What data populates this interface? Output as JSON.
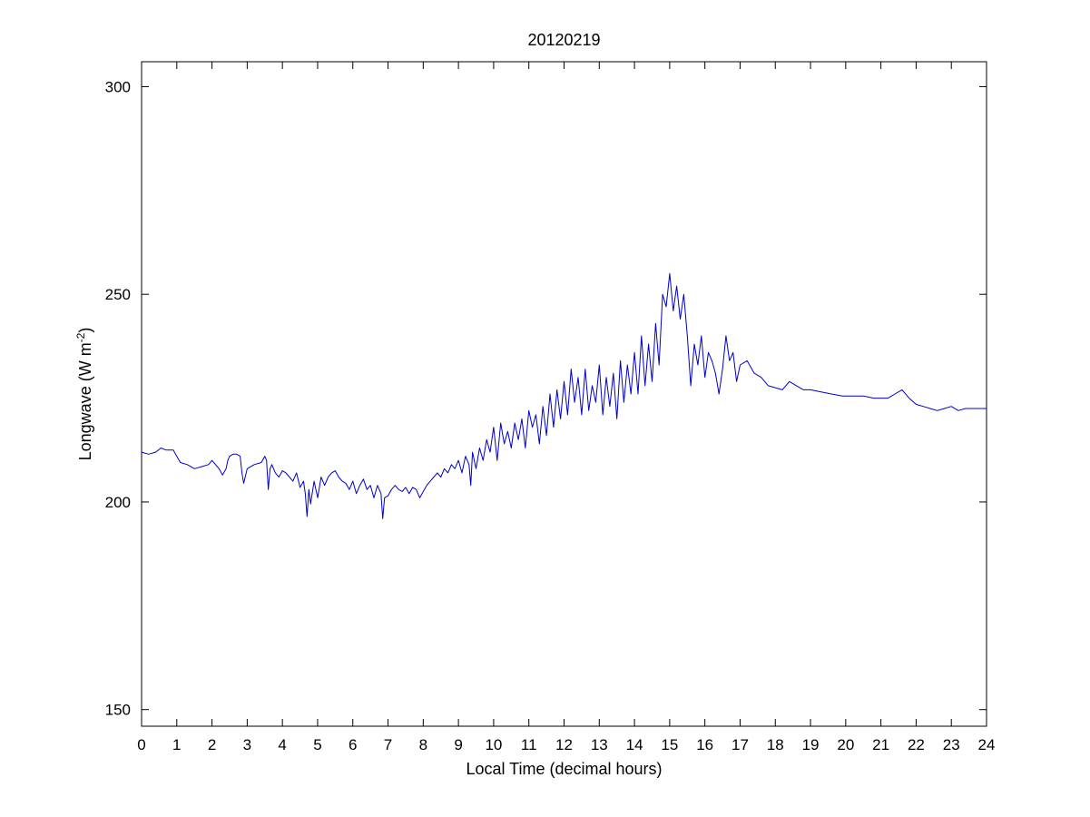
{
  "chart_data": {
    "type": "line",
    "title": "20120219",
    "xlabel": "Local Time (decimal hours)",
    "ylabel": "Longwave (W m",
    "ylabel_sup": "-2",
    "ylabel_close": ")",
    "xlim": [
      0,
      24
    ],
    "ylim": [
      146,
      306
    ],
    "xticks": [
      0,
      1,
      2,
      3,
      4,
      5,
      6,
      7,
      8,
      9,
      10,
      11,
      12,
      13,
      14,
      15,
      16,
      17,
      18,
      19,
      20,
      21,
      22,
      23,
      24
    ],
    "yticks": [
      150,
      200,
      250,
      300
    ],
    "grid": false,
    "line_color": "#0000cc",
    "series": [
      {
        "x": [
          0,
          0.2,
          0.4,
          0.55,
          0.7,
          0.9,
          1.0,
          1.1,
          1.3,
          1.5,
          1.7,
          1.9,
          2.0,
          2.1,
          2.2,
          2.3,
          2.4,
          2.45,
          2.5,
          2.6,
          2.7,
          2.8,
          2.85,
          2.9,
          3.0,
          3.2,
          3.4,
          3.5,
          3.55,
          3.6,
          3.65,
          3.7,
          3.8,
          3.9,
          4.0,
          4.1,
          4.2,
          4.3,
          4.4,
          4.5,
          4.6,
          4.65,
          4.7,
          4.75,
          4.8,
          4.9,
          5.0,
          5.1,
          5.2,
          5.3,
          5.4,
          5.5,
          5.6,
          5.7,
          5.8,
          5.9,
          6.0,
          6.1,
          6.2,
          6.3,
          6.4,
          6.5,
          6.6,
          6.7,
          6.8,
          6.85,
          6.9,
          7.0,
          7.1,
          7.2,
          7.3,
          7.4,
          7.5,
          7.6,
          7.7,
          7.8,
          7.9,
          8.0,
          8.1,
          8.2,
          8.3,
          8.4,
          8.5,
          8.6,
          8.7,
          8.8,
          8.9,
          9.0,
          9.1,
          9.2,
          9.3,
          9.35,
          9.4,
          9.5,
          9.6,
          9.7,
          9.8,
          9.9,
          10.0,
          10.1,
          10.2,
          10.3,
          10.4,
          10.5,
          10.6,
          10.7,
          10.8,
          10.9,
          11.0,
          11.1,
          11.2,
          11.3,
          11.4,
          11.5,
          11.6,
          11.7,
          11.8,
          11.9,
          12.0,
          12.1,
          12.2,
          12.3,
          12.4,
          12.5,
          12.6,
          12.7,
          12.8,
          12.9,
          13.0,
          13.1,
          13.2,
          13.3,
          13.4,
          13.5,
          13.6,
          13.7,
          13.8,
          13.9,
          14.0,
          14.1,
          14.2,
          14.3,
          14.4,
          14.5,
          14.6,
          14.7,
          14.8,
          14.9,
          15.0,
          15.1,
          15.2,
          15.3,
          15.4,
          15.5,
          15.6,
          15.7,
          15.8,
          15.9,
          16.0,
          16.1,
          16.2,
          16.3,
          16.4,
          16.5,
          16.6,
          16.7,
          16.8,
          16.9,
          17.0,
          17.2,
          17.4,
          17.6,
          17.8,
          18.0,
          18.2,
          18.4,
          18.6,
          18.8,
          19.0,
          19.3,
          19.6,
          19.9,
          20.2,
          20.5,
          20.8,
          21.0,
          21.2,
          21.4,
          21.6,
          21.8,
          22.0,
          22.2,
          22.4,
          22.6,
          22.8,
          23.0,
          23.2,
          23.4,
          23.6,
          23.8,
          24.0
        ],
        "y": [
          212,
          211.5,
          212,
          213,
          212.5,
          212.5,
          211,
          209.5,
          209,
          208,
          208.5,
          209,
          210,
          209,
          208,
          206.5,
          208,
          210,
          211,
          211.5,
          211.5,
          211,
          207,
          204.5,
          208,
          209,
          209.5,
          211,
          210,
          203,
          208,
          209,
          207,
          206,
          207.5,
          207,
          206,
          205,
          207,
          203.5,
          205,
          202,
          196.5,
          203,
          199.5,
          205,
          201,
          206,
          204,
          206,
          207,
          207.5,
          206,
          205,
          204.5,
          203,
          205,
          202,
          204,
          205.5,
          203,
          204,
          201,
          204,
          202,
          196,
          201,
          201.5,
          203,
          204,
          203,
          202.5,
          203.5,
          202,
          203.5,
          203,
          201,
          202.5,
          204,
          205,
          206,
          207,
          206,
          208,
          207,
          209,
          208,
          210,
          207,
          211,
          209,
          204,
          212,
          208,
          213,
          210,
          215,
          212,
          218,
          210,
          219,
          214,
          217,
          213,
          219,
          215,
          220,
          213,
          222,
          218,
          221,
          214,
          223,
          216,
          226,
          218,
          227,
          220,
          229,
          221,
          232,
          224,
          230,
          221,
          232,
          222,
          228,
          224,
          233,
          221,
          230,
          223,
          231,
          220,
          234,
          224,
          233,
          226,
          236,
          226,
          240,
          228,
          238,
          229,
          243,
          233,
          250,
          247,
          255,
          246,
          252,
          244,
          250,
          240,
          228,
          238,
          233,
          240,
          230,
          236,
          234,
          231,
          226,
          232,
          240,
          234,
          236,
          229,
          233,
          234,
          231,
          230,
          228,
          227.5,
          227,
          229,
          228,
          227,
          227,
          226.5,
          226,
          225.5,
          225.5,
          225.5,
          225,
          225,
          225,
          226,
          227,
          225,
          223.5,
          223,
          222.5,
          222,
          222.5,
          223,
          222,
          222.5,
          222.5,
          222.5,
          222.5
        ]
      }
    ]
  }
}
